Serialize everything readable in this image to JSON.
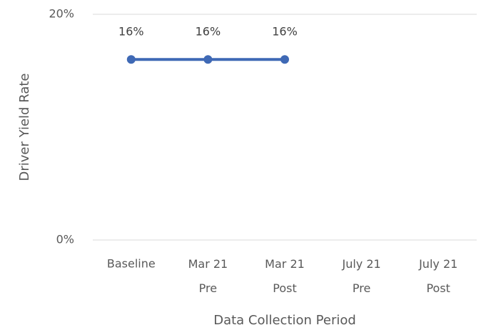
{
  "chart_data": {
    "type": "line",
    "categories": [
      "Baseline",
      "Mar 21 Pre",
      "Mar 21 Post",
      "July 21 Pre",
      "July 21 Post"
    ],
    "series": [
      {
        "name": "Driver Yield Rate",
        "color": "#3f69b5",
        "values": [
          16,
          16,
          16,
          null,
          null
        ],
        "value_labels": [
          "16%",
          "16%",
          "16%",
          null,
          null
        ]
      }
    ],
    "ylim": [
      0,
      20
    ],
    "yticks": [
      {
        "value": 0,
        "label": "0%"
      },
      {
        "value": 20,
        "label": "20%"
      }
    ],
    "grid": true,
    "x_label": "Data Collection Period",
    "y_label": "Driver Yield Rate"
  }
}
